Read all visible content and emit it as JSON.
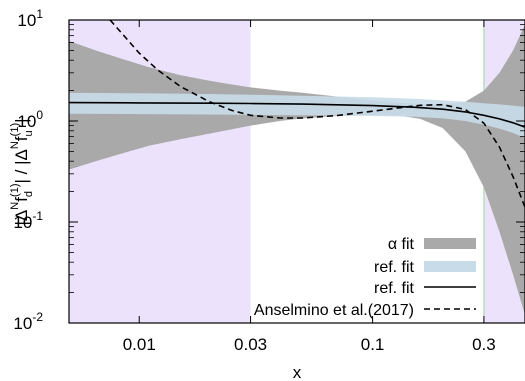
{
  "chart_data": {
    "type": "line",
    "title": "",
    "xlabel": "x",
    "ylabel": "|Δ^N f_d^(1)| / |Δ^N f_u^(1)|",
    "ylabel_parts": {
      "num_pre": "|Δ",
      "num_N": "N",
      "num_f": "f",
      "num_sub": "d",
      "num_sup": "(1)",
      "sep": "| / |Δ",
      "den_N": "N",
      "den_f": "f",
      "den_sub": "u",
      "den_sup": "(1)",
      "end": "|"
    },
    "x_scale": "log",
    "y_scale": "log",
    "xlim": [
      0.005,
      0.45
    ],
    "ylim": [
      0.01,
      10
    ],
    "x_ticks": [
      {
        "value": 0.01,
        "label": "0.01"
      },
      {
        "value": 0.03,
        "label": "0.03"
      },
      {
        "value": 0.1,
        "label": "0.1"
      },
      {
        "value": 0.3,
        "label": "0.3"
      }
    ],
    "y_ticks": [
      {
        "value": 0.01,
        "base": "10",
        "exp": "-2"
      },
      {
        "value": 0.1,
        "base": "10",
        "exp": "-1"
      },
      {
        "value": 1,
        "base": "10",
        "exp": "0"
      },
      {
        "value": 10,
        "base": "10",
        "exp": "1"
      }
    ],
    "shaded_regions": [
      {
        "x_from": 0.005,
        "x_to": 0.03,
        "color": "#ede2fb"
      },
      {
        "x_from": 0.3,
        "x_to": 0.45,
        "color": "#ede2fb"
      }
    ],
    "series": [
      {
        "name": "α fit",
        "kind": "band",
        "color": "#a9a9a9",
        "x": [
          0.005,
          0.0065,
          0.0085,
          0.011,
          0.015,
          0.02,
          0.025,
          0.03,
          0.04,
          0.05,
          0.07,
          0.1,
          0.13,
          0.16,
          0.2,
          0.25,
          0.3,
          0.35,
          0.4,
          0.45
        ],
        "upper": [
          6.2,
          5.0,
          4.1,
          3.4,
          2.85,
          2.5,
          2.3,
          2.15,
          2.0,
          1.9,
          1.75,
          1.6,
          1.52,
          1.47,
          1.45,
          1.55,
          2.0,
          3.0,
          5.0,
          9.0
        ],
        "lower": [
          0.33,
          0.4,
          0.48,
          0.57,
          0.66,
          0.75,
          0.83,
          0.9,
          1.0,
          1.06,
          1.12,
          1.15,
          1.13,
          1.05,
          0.85,
          0.5,
          0.22,
          0.08,
          0.03,
          0.012
        ]
      },
      {
        "name": "ref. fit",
        "kind": "band",
        "color": "#c8dbe8",
        "x": [
          0.005,
          0.01,
          0.02,
          0.03,
          0.05,
          0.1,
          0.15,
          0.2,
          0.25,
          0.3,
          0.35,
          0.4,
          0.45
        ],
        "upper": [
          1.9,
          1.88,
          1.85,
          1.82,
          1.78,
          1.72,
          1.66,
          1.6,
          1.55,
          1.5,
          1.46,
          1.42,
          1.38
        ],
        "lower": [
          1.18,
          1.17,
          1.16,
          1.15,
          1.14,
          1.12,
          1.1,
          1.06,
          1.0,
          0.92,
          0.84,
          0.76,
          0.68
        ]
      },
      {
        "name": "ref. fit",
        "kind": "line",
        "color": "#000000",
        "dash": "solid",
        "x": [
          0.005,
          0.01,
          0.02,
          0.03,
          0.05,
          0.1,
          0.15,
          0.2,
          0.25,
          0.3,
          0.35,
          0.4,
          0.45
        ],
        "y": [
          1.52,
          1.51,
          1.5,
          1.49,
          1.47,
          1.42,
          1.37,
          1.31,
          1.23,
          1.14,
          1.05,
          0.96,
          0.87
        ]
      },
      {
        "name": "Anselmino et al.(2017)",
        "kind": "line",
        "color": "#000000",
        "dash": "dashed",
        "x": [
          0.0075,
          0.0085,
          0.01,
          0.012,
          0.015,
          0.02,
          0.025,
          0.03,
          0.04,
          0.05,
          0.07,
          0.1,
          0.13,
          0.16,
          0.2,
          0.25,
          0.3,
          0.35,
          0.4,
          0.45
        ],
        "y": [
          10.0,
          7.2,
          4.7,
          3.2,
          2.2,
          1.55,
          1.27,
          1.14,
          1.07,
          1.07,
          1.13,
          1.25,
          1.35,
          1.43,
          1.45,
          1.3,
          0.95,
          0.55,
          0.28,
          0.14
        ]
      }
    ],
    "grid": false,
    "legend_placement": "bottom-right",
    "legend": [
      {
        "label": "α fit",
        "style": "band",
        "color": "#a9a9a9"
      },
      {
        "label": "ref. fit",
        "style": "band",
        "color": "#c8dbe8"
      },
      {
        "label": "ref. fit",
        "style": "solid",
        "color": "#000000"
      },
      {
        "label": "Anselmino et al.(2017)",
        "style": "dashed",
        "color": "#000000"
      }
    ]
  }
}
